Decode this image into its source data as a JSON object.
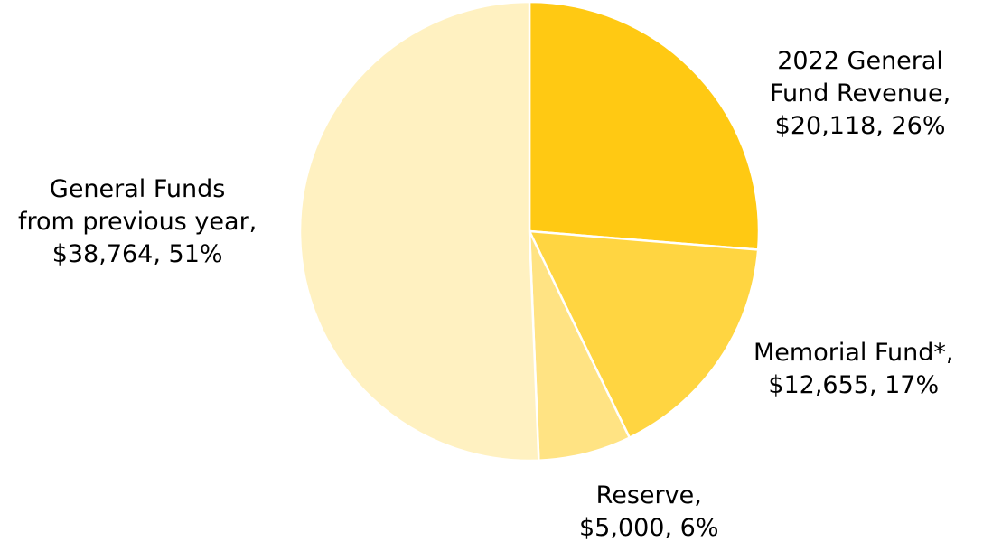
{
  "chart_data": {
    "type": "pie",
    "title": "",
    "start_angle_deg": 0,
    "direction": "clockwise",
    "slices": [
      {
        "label": "2022 General Fund Revenue",
        "value": 20118,
        "percent_label": "26%",
        "color": "#FFC913",
        "label_lines": [
          "2022 General",
          "Fund Revenue,",
          "$20,118, 26%"
        ]
      },
      {
        "label": "Memorial Fund*",
        "value": 12655,
        "percent_label": "17%",
        "color": "#FFD541",
        "label_lines": [
          "Memorial Fund*,",
          "$12,655, 17%"
        ]
      },
      {
        "label": "Reserve",
        "value": 5000,
        "percent_label": "6%",
        "color": "#FFE383",
        "label_lines": [
          "Reserve,",
          "$5,000, 6%"
        ]
      },
      {
        "label": "General Funds from previous year",
        "value": 38764,
        "percent_label": "51%",
        "color": "#FFF1C1",
        "label_lines": [
          "General Funds",
          "from previous year,",
          "$38,764, 51%"
        ]
      }
    ]
  }
}
